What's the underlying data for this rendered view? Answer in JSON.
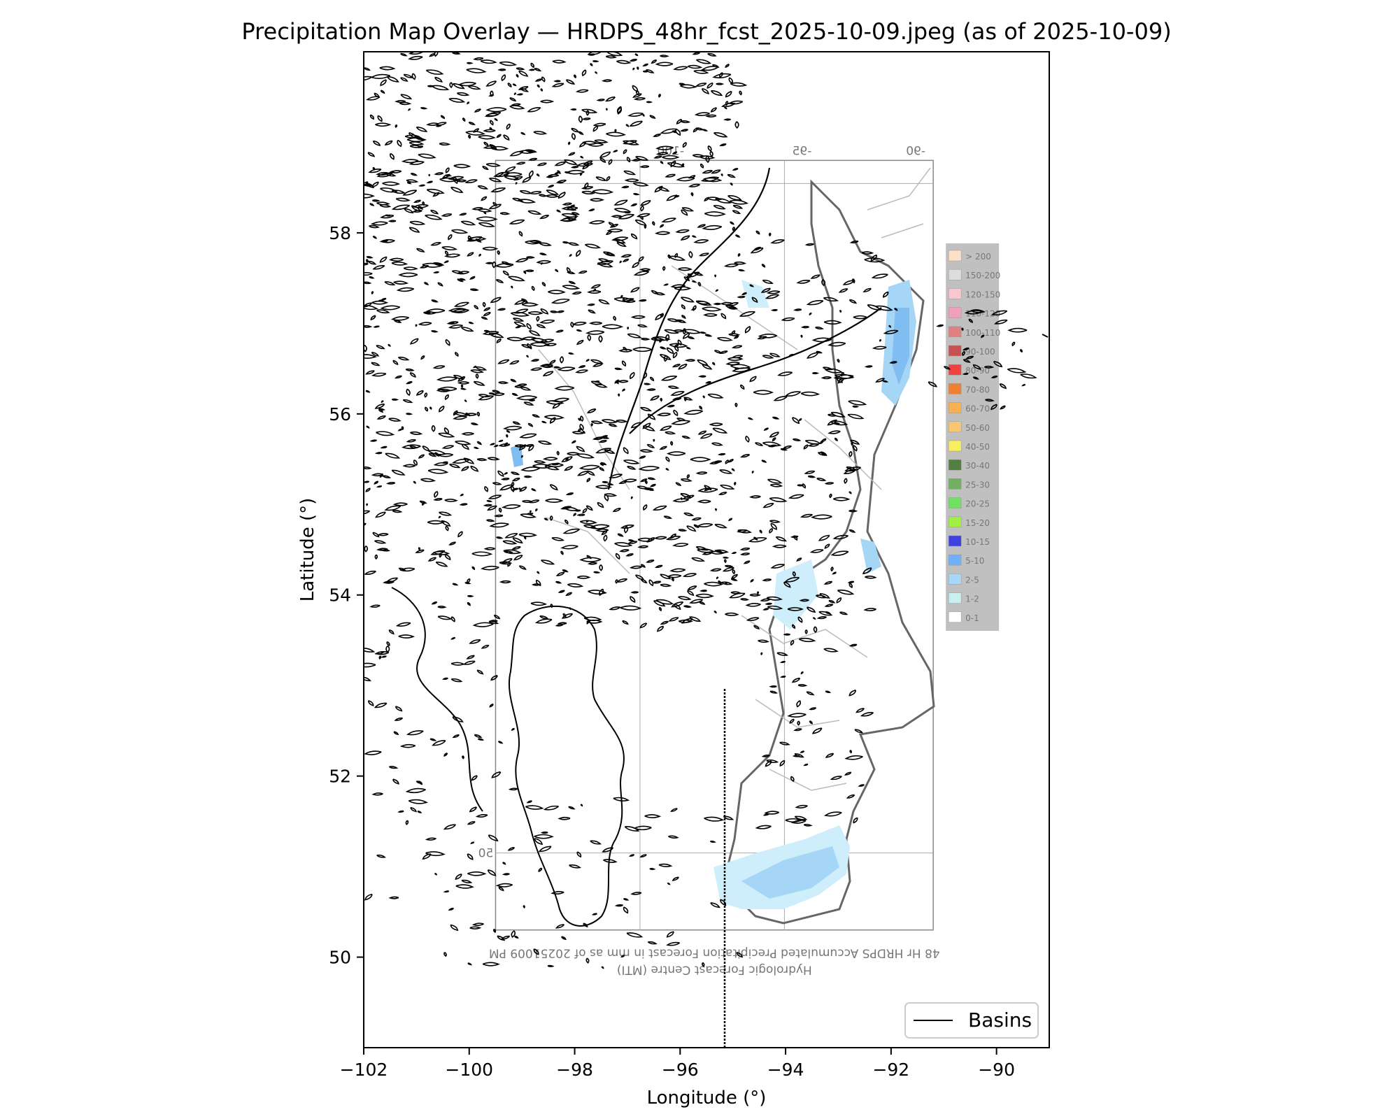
{
  "title": "Precipitation Map Overlay — HRDPS_48hr_fcst_2025-10-09.jpeg (as of 2025-10-09)",
  "xlabel": "Longitude (°)",
  "ylabel": "Latitude (°)",
  "x_ticks": [
    {
      "value": -102,
      "label": "−102"
    },
    {
      "value": -100,
      "label": "−100"
    },
    {
      "value": -98,
      "label": "−98"
    },
    {
      "value": -96,
      "label": "−96"
    },
    {
      "value": -94,
      "label": "−94"
    },
    {
      "value": -92,
      "label": "−92"
    },
    {
      "value": -90,
      "label": "−90"
    }
  ],
  "y_ticks": [
    {
      "value": 50,
      "label": "50"
    },
    {
      "value": 52,
      "label": "52"
    },
    {
      "value": 54,
      "label": "54"
    },
    {
      "value": 56,
      "label": "56"
    },
    {
      "value": 58,
      "label": "58"
    }
  ],
  "x_range": [
    -102,
    -89
  ],
  "y_range": [
    49,
    60
  ],
  "legend": {
    "label": "Basins",
    "placement": "lower-right"
  },
  "overlay": {
    "lon_range": [
      -99.5,
      -91.2
    ],
    "lat_range": [
      50.3,
      58.8
    ],
    "top_ticks": [
      "-100",
      "-95",
      "-90"
    ],
    "left_tick": "50",
    "caption_line1": "48 Hr HRDPS Accumulated Precipitation Forecast in mm as of 20251009 PM",
    "caption_line2": "Hydrologic Forecast Centre (MTI)",
    "scale_labels": [
      "> 200",
      "150-200",
      "120-150",
      "110-120",
      "100-110",
      "90-100",
      "80-90",
      "70-80",
      "60-70",
      "50-60",
      "40-50",
      "30-40",
      "25-30",
      "20-25",
      "15-20",
      "10-15",
      "5-10",
      "2-5",
      "1-2",
      "0-1"
    ],
    "scale_colors": [
      "#fde0c8",
      "#dddddd",
      "#f8c8d0",
      "#f0a0b8",
      "#e08080",
      "#c85050",
      "#f04040",
      "#f08030",
      "#f8b050",
      "#f8c870",
      "#f8f060",
      "#508040",
      "#70b060",
      "#70e060",
      "#a0f040",
      "#4040e0",
      "#70b0f8",
      "#a8d8f8",
      "#c8f0f0",
      "#ffffff"
    ]
  },
  "colors": {
    "basin_line": "#000000",
    "frame": "#000000",
    "overlay_bg": "#ffffff",
    "scale_bg": "#c0c0c0",
    "rain_light": "#cdeefa",
    "rain_med": "#a6d6f6",
    "rain_heavy": "#80bdf0"
  }
}
